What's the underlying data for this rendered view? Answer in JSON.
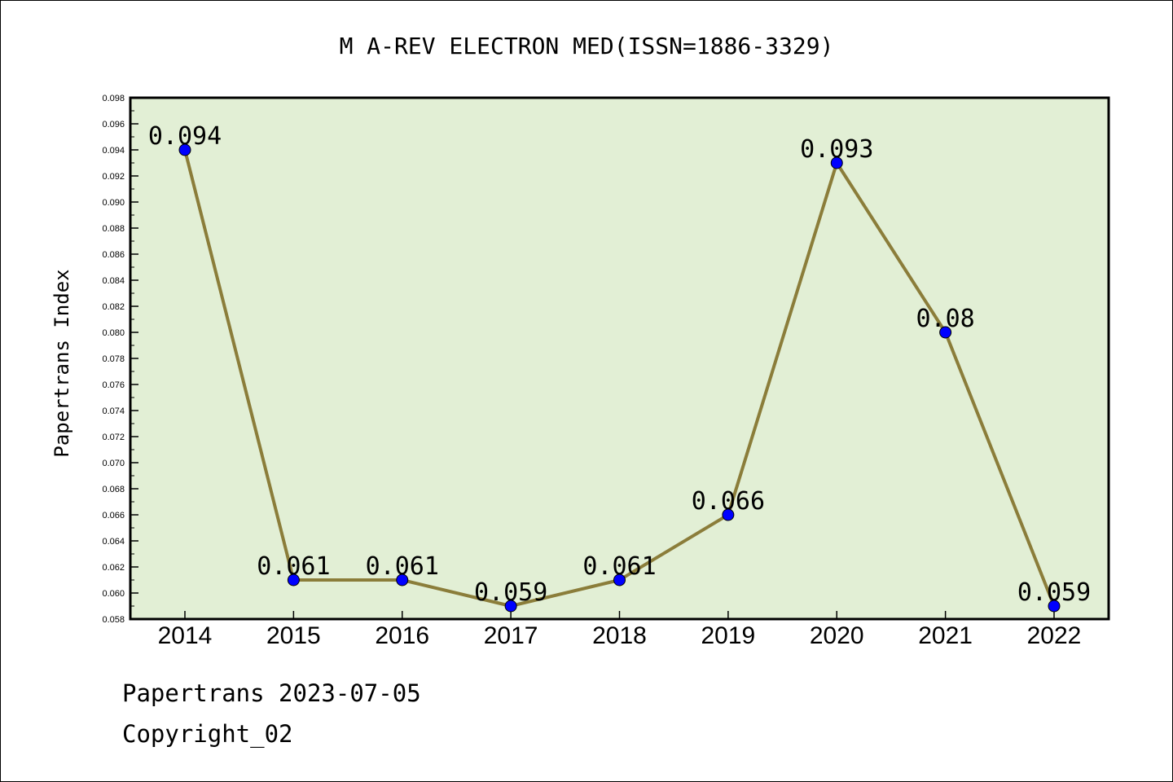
{
  "chart_data": {
    "type": "line",
    "title": "M A-REV ELECTRON MED(ISSN=1886-3329)",
    "xlabel": "",
    "ylabel": "Papertrans Index",
    "categories": [
      "2014",
      "2015",
      "2016",
      "2017",
      "2018",
      "2019",
      "2020",
      "2021",
      "2022"
    ],
    "series": [
      {
        "values": [
          0.094,
          0.061,
          0.061,
          0.059,
          0.061,
          0.066,
          0.093,
          0.08,
          0.059
        ]
      }
    ],
    "data_labels": [
      "0.094",
      "0.061",
      "0.061",
      "0.059",
      "0.061",
      "0.066",
      "0.093",
      "0.08",
      "0.059"
    ],
    "ylim": [
      0.058,
      0.098
    ],
    "yticks": [
      "0.058",
      "0.060",
      "0.062",
      "0.064",
      "0.066",
      "0.068",
      "0.070",
      "0.072",
      "0.074",
      "0.076",
      "0.078",
      "0.080",
      "0.082",
      "0.084",
      "0.086",
      "0.088",
      "0.090",
      "0.092",
      "0.094",
      "0.096",
      "0.098"
    ],
    "grid": false,
    "colors": {
      "plot_background": "#e2efd5",
      "line": "#8b7d3a",
      "marker": "#0000ff"
    }
  },
  "footer": {
    "line1": "Papertrans 2023-07-05",
    "line2": "Copyright_02"
  }
}
